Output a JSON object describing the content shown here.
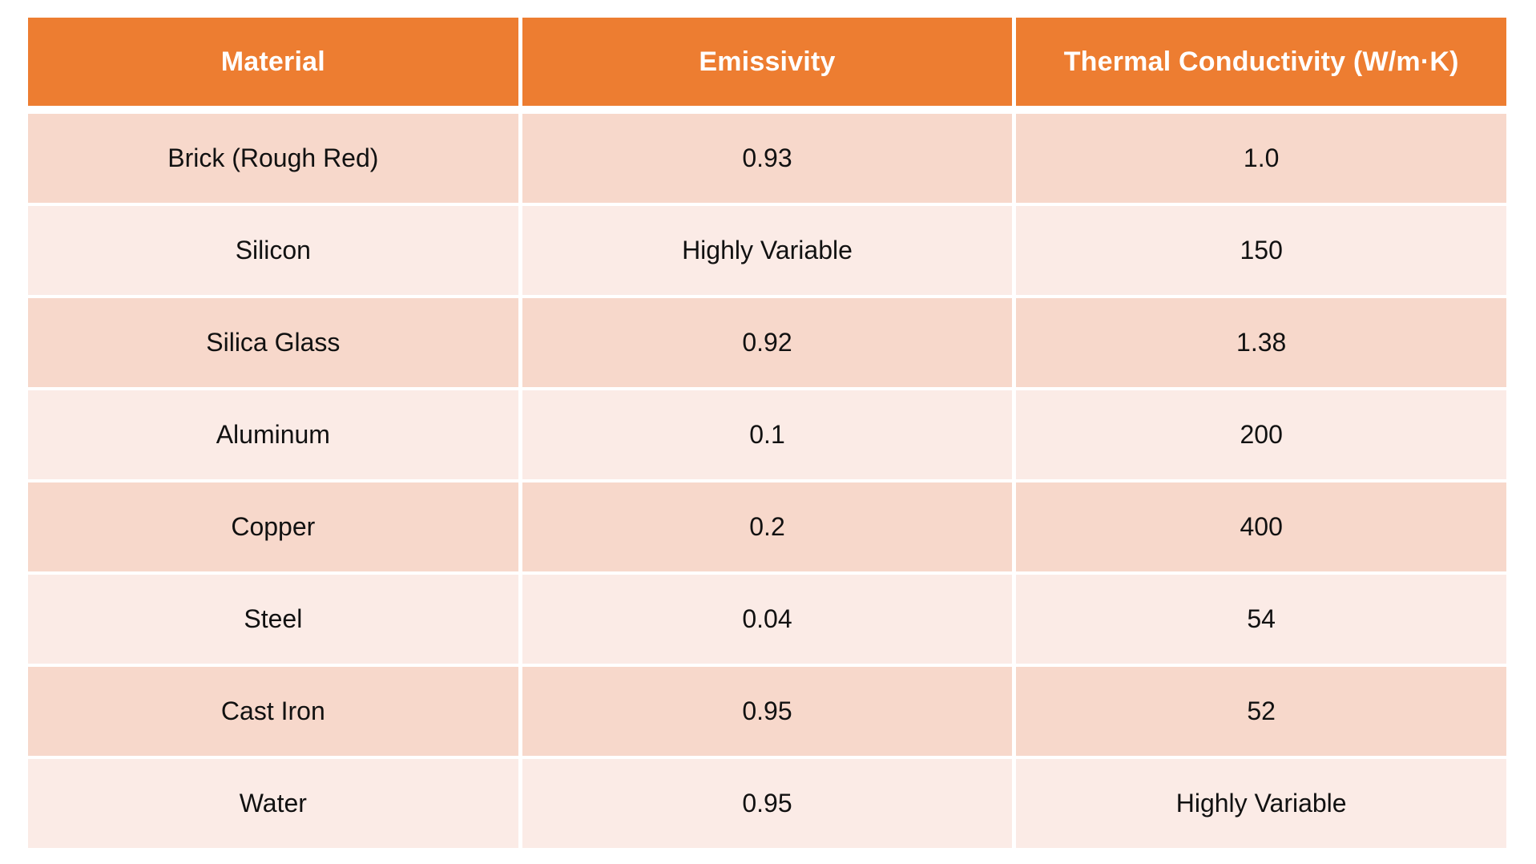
{
  "chart_data": {
    "type": "table",
    "title": "",
    "columns": [
      "Material",
      "Emissivity",
      "Thermal Conductivity (W/m·K)"
    ],
    "rows": [
      [
        "Brick (Rough Red)",
        "0.93",
        "1.0"
      ],
      [
        "Silicon",
        "Highly Variable",
        "150"
      ],
      [
        "Silica Glass",
        "0.92",
        "1.38"
      ],
      [
        "Aluminum",
        "0.1",
        "200"
      ],
      [
        "Copper",
        "0.2",
        "400"
      ],
      [
        "Steel",
        "0.04",
        "54"
      ],
      [
        "Cast Iron",
        "0.95",
        "52"
      ],
      [
        "Water",
        "0.95",
        "Highly Variable"
      ]
    ]
  },
  "colors": {
    "header_bg": "#ED7D31",
    "header_text": "#FFFFFF",
    "row_odd_bg": "#F7D8CB",
    "row_even_bg": "#FBEBE6",
    "body_text": "#111111",
    "page_bg": "#FFFFFF"
  }
}
